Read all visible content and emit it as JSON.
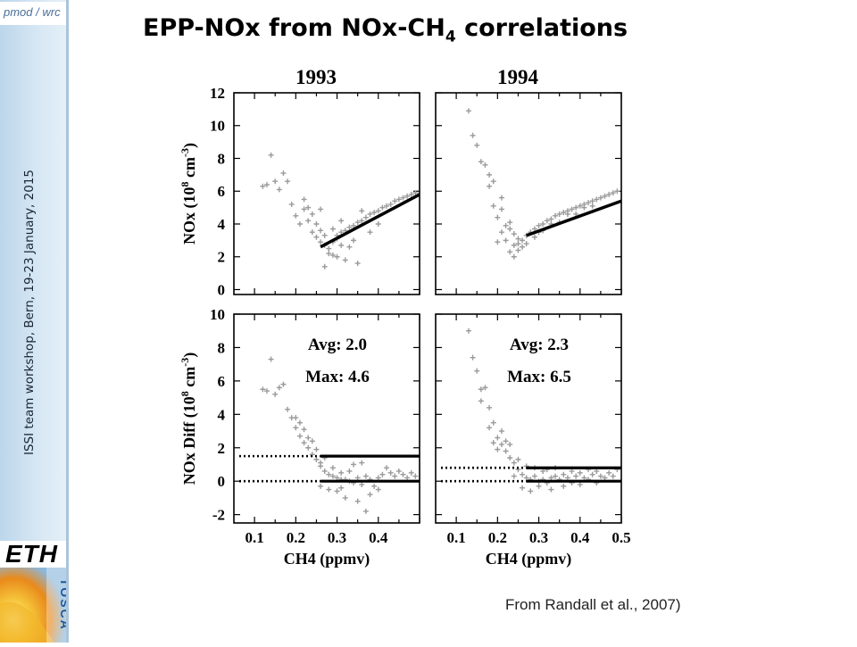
{
  "header": {
    "title_main": "EPP-NOx from NOx-CH",
    "title_sub": "4",
    "title_tail": " correlations"
  },
  "sidebar": {
    "logo_text": "pmod / wrc",
    "workshop_text": "ISSI team workshop, Bern, 19-23 January, 2015",
    "eth_logo": "ETH",
    "tosca_logo": "TOSCA"
  },
  "caption": "From Randall et al., 2007)",
  "colors": {
    "points": "#9a9a9a",
    "lines": "#000000",
    "sidebar": "#c8dff0"
  },
  "chart_data": [
    {
      "type": "scatter",
      "title": "1993",
      "ylabel": "NOx (10^8 cm^-3)",
      "xlim": [
        0.05,
        0.5
      ],
      "ylim": [
        -0.3,
        12
      ],
      "yticks": [
        "0",
        "2",
        "4",
        "6",
        "8",
        "10",
        "12"
      ],
      "xticks": [],
      "fit_line": [
        [
          0.26,
          2.6
        ],
        [
          0.5,
          5.8
        ]
      ],
      "annotations": []
    },
    {
      "type": "scatter",
      "title": "1994",
      "ylabel": "",
      "xlim": [
        0.05,
        0.5
      ],
      "ylim": [
        -0.3,
        12
      ],
      "yticks": [],
      "xticks": [],
      "fit_line": [
        [
          0.27,
          3.3
        ],
        [
          0.5,
          5.4
        ]
      ],
      "annotations": []
    },
    {
      "type": "scatter",
      "title": "",
      "ylabel": "NOx Diff (10^8 cm^-3)",
      "xlabel": "CH4 (ppmv)",
      "xlim": [
        0.05,
        0.5
      ],
      "ylim": [
        -2.5,
        10
      ],
      "yticks": [
        "-2",
        "0",
        "2",
        "4",
        "6",
        "8",
        "10"
      ],
      "xticks": [
        "0.1",
        "0.2",
        "0.3",
        "0.4"
      ],
      "hlines": [
        {
          "y": 1.5,
          "x_dotted": [
            0.05,
            0.26
          ],
          "x_solid": [
            0.26,
            0.5
          ]
        },
        {
          "y": 0.0,
          "x_dotted": [
            0.05,
            0.26
          ],
          "x_solid": [
            0.26,
            0.5
          ]
        }
      ],
      "annotations": [
        "Avg: 2.0",
        "Max: 4.6"
      ]
    },
    {
      "type": "scatter",
      "title": "",
      "ylabel": "",
      "xlabel": "CH4 (ppmv)",
      "xlim": [
        0.05,
        0.5
      ],
      "ylim": [
        -2.5,
        10
      ],
      "yticks": [],
      "xticks": [
        "0.1",
        "0.2",
        "0.3",
        "0.4",
        "0.5"
      ],
      "hlines": [
        {
          "y": 0.8,
          "x_dotted": [
            0.05,
            0.27
          ],
          "x_solid": [
            0.27,
            0.5
          ]
        },
        {
          "y": 0.0,
          "x_dotted": [
            0.05,
            0.27
          ],
          "x_solid": [
            0.27,
            0.5
          ]
        }
      ],
      "annotations": [
        "Avg: 2.3",
        "Max: 6.5"
      ]
    }
  ],
  "scatter_points": {
    "top_1993": [
      [
        0.12,
        6.3
      ],
      [
        0.13,
        6.4
      ],
      [
        0.14,
        8.2
      ],
      [
        0.15,
        6.6
      ],
      [
        0.16,
        6.1
      ],
      [
        0.17,
        7.1
      ],
      [
        0.18,
        6.6
      ],
      [
        0.19,
        5.2
      ],
      [
        0.2,
        4.5
      ],
      [
        0.21,
        4.0
      ],
      [
        0.22,
        4.9
      ],
      [
        0.23,
        4.2
      ],
      [
        0.24,
        3.5
      ],
      [
        0.25,
        3.2
      ],
      [
        0.26,
        2.9
      ],
      [
        0.27,
        2.7
      ],
      [
        0.28,
        2.5
      ],
      [
        0.29,
        2.9
      ],
      [
        0.3,
        3.1
      ],
      [
        0.31,
        3.5
      ],
      [
        0.32,
        3.6
      ],
      [
        0.33,
        3.8
      ],
      [
        0.34,
        3.9
      ],
      [
        0.35,
        4.1
      ],
      [
        0.36,
        4.2
      ],
      [
        0.37,
        4.4
      ],
      [
        0.38,
        4.6
      ],
      [
        0.39,
        4.7
      ],
      [
        0.4,
        4.8
      ],
      [
        0.41,
        5.0
      ],
      [
        0.42,
        5.1
      ],
      [
        0.43,
        5.2
      ],
      [
        0.44,
        5.4
      ],
      [
        0.45,
        5.5
      ],
      [
        0.46,
        5.6
      ],
      [
        0.47,
        5.7
      ],
      [
        0.48,
        5.8
      ],
      [
        0.49,
        5.9
      ],
      [
        0.25,
        4.0
      ],
      [
        0.26,
        3.6
      ],
      [
        0.27,
        3.3
      ],
      [
        0.28,
        2.2
      ],
      [
        0.29,
        3.7
      ],
      [
        0.3,
        2.0
      ],
      [
        0.31,
        2.7
      ],
      [
        0.32,
        1.8
      ],
      [
        0.33,
        2.6
      ],
      [
        0.34,
        3.0
      ],
      [
        0.35,
        1.6
      ],
      [
        0.36,
        4.8
      ],
      [
        0.38,
        3.5
      ],
      [
        0.4,
        4.0
      ],
      [
        0.22,
        5.5
      ],
      [
        0.23,
        5.0
      ],
      [
        0.24,
        4.6
      ],
      [
        0.26,
        4.9
      ],
      [
        0.27,
        1.4
      ],
      [
        0.29,
        2.1
      ],
      [
        0.3,
        3.3
      ],
      [
        0.31,
        4.2
      ]
    ],
    "top_1994": [
      [
        0.13,
        10.9
      ],
      [
        0.14,
        9.4
      ],
      [
        0.15,
        8.8
      ],
      [
        0.16,
        7.8
      ],
      [
        0.17,
        7.6
      ],
      [
        0.18,
        6.3
      ],
      [
        0.19,
        5.1
      ],
      [
        0.2,
        4.4
      ],
      [
        0.21,
        4.9
      ],
      [
        0.22,
        3.9
      ],
      [
        0.23,
        3.7
      ],
      [
        0.24,
        3.4
      ],
      [
        0.25,
        3.1
      ],
      [
        0.26,
        2.6
      ],
      [
        0.27,
        3.3
      ],
      [
        0.28,
        3.5
      ],
      [
        0.29,
        3.7
      ],
      [
        0.3,
        3.9
      ],
      [
        0.31,
        4.0
      ],
      [
        0.32,
        4.2
      ],
      [
        0.33,
        4.3
      ],
      [
        0.34,
        4.5
      ],
      [
        0.35,
        4.6
      ],
      [
        0.36,
        4.7
      ],
      [
        0.37,
        4.8
      ],
      [
        0.38,
        4.9
      ],
      [
        0.39,
        5.0
      ],
      [
        0.4,
        5.1
      ],
      [
        0.41,
        5.2
      ],
      [
        0.42,
        5.3
      ],
      [
        0.43,
        5.4
      ],
      [
        0.44,
        5.5
      ],
      [
        0.45,
        5.6
      ],
      [
        0.46,
        5.7
      ],
      [
        0.47,
        5.8
      ],
      [
        0.48,
        5.9
      ],
      [
        0.49,
        6.0
      ],
      [
        0.2,
        2.9
      ],
      [
        0.21,
        3.5
      ],
      [
        0.22,
        3.0
      ],
      [
        0.23,
        2.3
      ],
      [
        0.24,
        2.7
      ],
      [
        0.25,
        2.4
      ],
      [
        0.26,
        3.0
      ],
      [
        0.27,
        2.8
      ],
      [
        0.29,
        3.2
      ],
      [
        0.3,
        3.5
      ],
      [
        0.31,
        3.6
      ],
      [
        0.33,
        4.0
      ],
      [
        0.35,
        4.1
      ],
      [
        0.37,
        4.6
      ],
      [
        0.39,
        4.6
      ],
      [
        0.41,
        5.0
      ],
      [
        0.43,
        5.1
      ],
      [
        0.18,
        7.0
      ],
      [
        0.19,
        6.6
      ],
      [
        0.21,
        5.6
      ],
      [
        0.23,
        4.1
      ],
      [
        0.24,
        2.0
      ],
      [
        0.25,
        2.8
      ]
    ],
    "bottom_1993": [
      [
        0.12,
        5.5
      ],
      [
        0.13,
        5.4
      ],
      [
        0.14,
        7.3
      ],
      [
        0.15,
        5.2
      ],
      [
        0.16,
        5.6
      ],
      [
        0.17,
        5.8
      ],
      [
        0.18,
        4.3
      ],
      [
        0.19,
        3.8
      ],
      [
        0.2,
        3.2
      ],
      [
        0.21,
        2.7
      ],
      [
        0.22,
        2.3
      ],
      [
        0.23,
        2.0
      ],
      [
        0.24,
        1.6
      ],
      [
        0.25,
        1.3
      ],
      [
        0.26,
        0.9
      ],
      [
        0.27,
        0.6
      ],
      [
        0.28,
        0.4
      ],
      [
        0.29,
        0.3
      ],
      [
        0.3,
        0.2
      ],
      [
        0.31,
        0.1
      ],
      [
        0.32,
        0.1
      ],
      [
        0.33,
        0.0
      ],
      [
        0.34,
        -0.1
      ],
      [
        0.35,
        0.2
      ],
      [
        0.36,
        -0.2
      ],
      [
        0.37,
        0.3
      ],
      [
        0.38,
        0.1
      ],
      [
        0.39,
        -0.3
      ],
      [
        0.4,
        0.2
      ],
      [
        0.41,
        0.4
      ],
      [
        0.42,
        0.8
      ],
      [
        0.43,
        0.5
      ],
      [
        0.44,
        0.3
      ],
      [
        0.45,
        0.6
      ],
      [
        0.46,
        0.4
      ],
      [
        0.47,
        0.2
      ],
      [
        0.48,
        0.5
      ],
      [
        0.49,
        0.3
      ],
      [
        0.22,
        3.1
      ],
      [
        0.24,
        2.4
      ],
      [
        0.25,
        1.9
      ],
      [
        0.26,
        1.1
      ],
      [
        0.27,
        1.4
      ],
      [
        0.28,
        -0.5
      ],
      [
        0.29,
        0.8
      ],
      [
        0.3,
        -0.6
      ],
      [
        0.31,
        0.5
      ],
      [
        0.32,
        -1.0
      ],
      [
        0.33,
        0.6
      ],
      [
        0.34,
        1.0
      ],
      [
        0.35,
        -1.2
      ],
      [
        0.36,
        1.1
      ],
      [
        0.38,
        -0.8
      ],
      [
        0.4,
        -0.5
      ],
      [
        0.2,
        3.8
      ],
      [
        0.21,
        3.5
      ],
      [
        0.23,
        2.6
      ],
      [
        0.26,
        -0.3
      ],
      [
        0.31,
        -0.4
      ],
      [
        0.37,
        -1.8
      ]
    ],
    "bottom_1994": [
      [
        0.13,
        9.0
      ],
      [
        0.14,
        7.4
      ],
      [
        0.15,
        6.6
      ],
      [
        0.16,
        5.5
      ],
      [
        0.17,
        5.6
      ],
      [
        0.18,
        4.4
      ],
      [
        0.19,
        3.5
      ],
      [
        0.2,
        2.6
      ],
      [
        0.21,
        2.2
      ],
      [
        0.22,
        1.8
      ],
      [
        0.23,
        1.4
      ],
      [
        0.24,
        1.1
      ],
      [
        0.25,
        0.7
      ],
      [
        0.26,
        0.4
      ],
      [
        0.27,
        0.2
      ],
      [
        0.28,
        0.1
      ],
      [
        0.29,
        0.3
      ],
      [
        0.3,
        0.0
      ],
      [
        0.31,
        0.1
      ],
      [
        0.32,
        -0.1
      ],
      [
        0.33,
        0.2
      ],
      [
        0.34,
        0.3
      ],
      [
        0.35,
        0.1
      ],
      [
        0.36,
        0.4
      ],
      [
        0.37,
        0.2
      ],
      [
        0.38,
        -0.1
      ],
      [
        0.39,
        0.3
      ],
      [
        0.4,
        0.5
      ],
      [
        0.41,
        0.2
      ],
      [
        0.42,
        0.1
      ],
      [
        0.43,
        0.4
      ],
      [
        0.44,
        0.6
      ],
      [
        0.45,
        0.3
      ],
      [
        0.46,
        0.2
      ],
      [
        0.47,
        0.5
      ],
      [
        0.48,
        0.3
      ],
      [
        0.49,
        0.7
      ],
      [
        0.16,
        4.8
      ],
      [
        0.18,
        3.2
      ],
      [
        0.19,
        2.3
      ],
      [
        0.2,
        1.9
      ],
      [
        0.21,
        3.0
      ],
      [
        0.22,
        2.4
      ],
      [
        0.23,
        2.2
      ],
      [
        0.24,
        0.3
      ],
      [
        0.25,
        1.3
      ],
      [
        0.26,
        -0.4
      ],
      [
        0.27,
        0.9
      ],
      [
        0.28,
        -0.6
      ],
      [
        0.29,
        0.8
      ],
      [
        0.3,
        -0.3
      ],
      [
        0.31,
        0.6
      ],
      [
        0.32,
        0.7
      ],
      [
        0.33,
        -0.5
      ],
      [
        0.34,
        0.8
      ],
      [
        0.36,
        -0.3
      ],
      [
        0.38,
        0.6
      ],
      [
        0.4,
        -0.2
      ],
      [
        0.42,
        0.7
      ],
      [
        0.44,
        -0.1
      ]
    ]
  }
}
